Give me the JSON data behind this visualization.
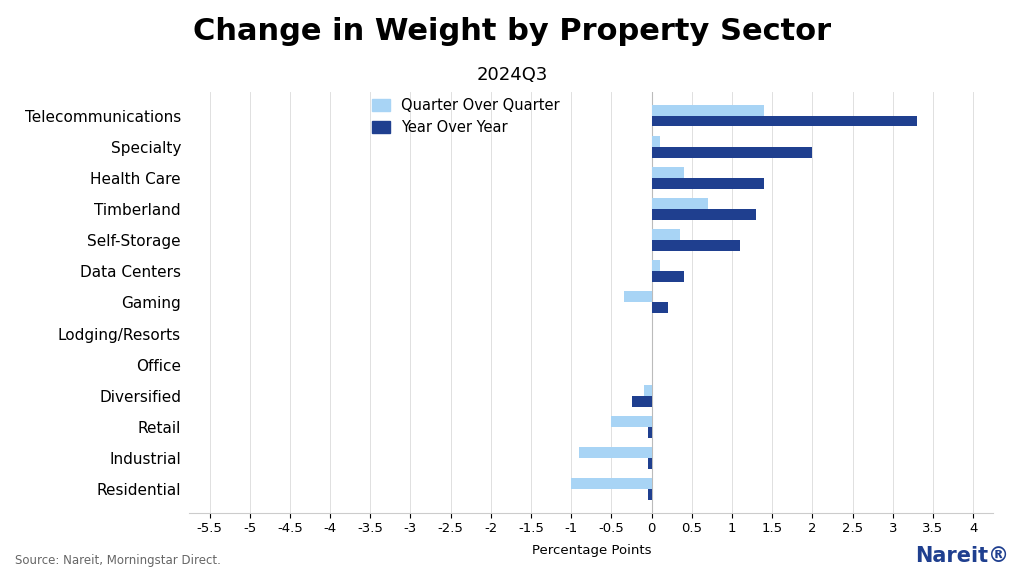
{
  "title": "Change in Weight by Property Sector",
  "subtitle": "2024Q3",
  "categories": [
    "Telecommunications",
    "Specialty",
    "Health Care",
    "Timberland",
    "Self-Storage",
    "Data Centers",
    "Gaming",
    "Lodging/Resorts",
    "Office",
    "Diversified",
    "Retail",
    "Industrial",
    "Residential"
  ],
  "qoq": [
    1.4,
    0.1,
    0.4,
    0.7,
    0.35,
    0.1,
    -0.35,
    0.0,
    0.0,
    -0.1,
    -0.5,
    -0.9,
    -1.0
  ],
  "yoy": [
    3.3,
    2.0,
    1.4,
    1.3,
    1.1,
    0.4,
    0.2,
    0.0,
    0.0,
    -0.25,
    -0.05,
    -0.05,
    -0.05
  ],
  "color_qoq": "#a8d4f5",
  "color_yoy": "#1f3f8f",
  "xlabel": "Percentage Points",
  "xlim_min": -5.75,
  "xlim_max": 4.25,
  "xtick_vals": [
    -5.5,
    -5.0,
    -4.5,
    -4.0,
    -3.5,
    -3.0,
    -2.5,
    -2.0,
    -1.5,
    -1.0,
    -0.5,
    0.0,
    0.5,
    1.0,
    1.5,
    2.0,
    2.5,
    3.0,
    3.5,
    4.0
  ],
  "source_text": "Source: Nareit, Morningstar Direct.",
  "background_color": "#ffffff",
  "title_fontsize": 22,
  "subtitle_fontsize": 13,
  "tick_fontsize": 9.5,
  "label_fontsize": 11,
  "legend_fontsize": 10.5,
  "source_fontsize": 8.5,
  "bar_height": 0.35
}
